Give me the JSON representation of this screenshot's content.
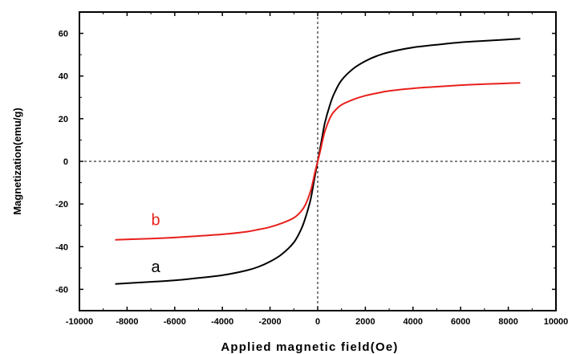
{
  "chart_data": {
    "type": "line",
    "title": "",
    "xlabel": "Applied magnetic field(Oe)",
    "ylabel": "Magnetization(emu/g)",
    "xlim": [
      -10000,
      10000
    ],
    "ylim": [
      -70,
      70
    ],
    "xticks": [
      -10000,
      -8000,
      -6000,
      -4000,
      -2000,
      0,
      2000,
      4000,
      6000,
      8000,
      10000
    ],
    "yticks": [
      -60,
      -40,
      -20,
      0,
      20,
      40,
      60
    ],
    "reference_lines": {
      "x0": true,
      "y0": true,
      "style": "dotted"
    },
    "grid": false,
    "series": [
      {
        "name": "a",
        "color": "#000000",
        "x": [
          -8500,
          -7000,
          -6000,
          -5000,
          -4000,
          -3000,
          -2500,
          -2000,
          -1500,
          -1000,
          -700,
          -500,
          -300,
          -200,
          -100,
          0,
          100,
          200,
          300,
          500,
          700,
          1000,
          1500,
          2000,
          2500,
          3000,
          4000,
          5000,
          6000,
          7000,
          8500
        ],
        "y": [
          -57.5,
          -56.5,
          -55.8,
          -54.7,
          -53.4,
          -51.2,
          -49.5,
          -47,
          -43.5,
          -38,
          -32,
          -26,
          -18,
          -12,
          -6,
          0,
          6,
          12,
          18,
          26,
          32,
          38,
          43.5,
          47,
          49.5,
          51.2,
          53.4,
          54.7,
          55.8,
          56.5,
          57.5
        ]
      },
      {
        "name": "b",
        "color": "#e8201c",
        "x": [
          -8500,
          -7000,
          -6000,
          -5000,
          -4000,
          -3000,
          -2500,
          -2000,
          -1500,
          -1000,
          -700,
          -500,
          -300,
          -200,
          -100,
          0,
          100,
          200,
          300,
          500,
          700,
          1000,
          1500,
          2000,
          2500,
          3000,
          4000,
          5000,
          6000,
          7000,
          8500
        ],
        "y": [
          -36.8,
          -36.2,
          -35.7,
          -35,
          -34.2,
          -33,
          -32,
          -30.8,
          -29,
          -26.5,
          -23.5,
          -20,
          -14,
          -9.5,
          -4.5,
          0,
          4.5,
          9.5,
          14,
          20,
          23.5,
          26.5,
          29,
          30.8,
          32,
          33,
          34.2,
          35,
          35.7,
          36.2,
          36.8
        ]
      }
    ],
    "annotations": [
      {
        "text": "b",
        "x": -6800,
        "y": -30,
        "color": "#e8201c"
      },
      {
        "text": "a",
        "x": -6800,
        "y": -52,
        "color": "#000000"
      }
    ]
  }
}
